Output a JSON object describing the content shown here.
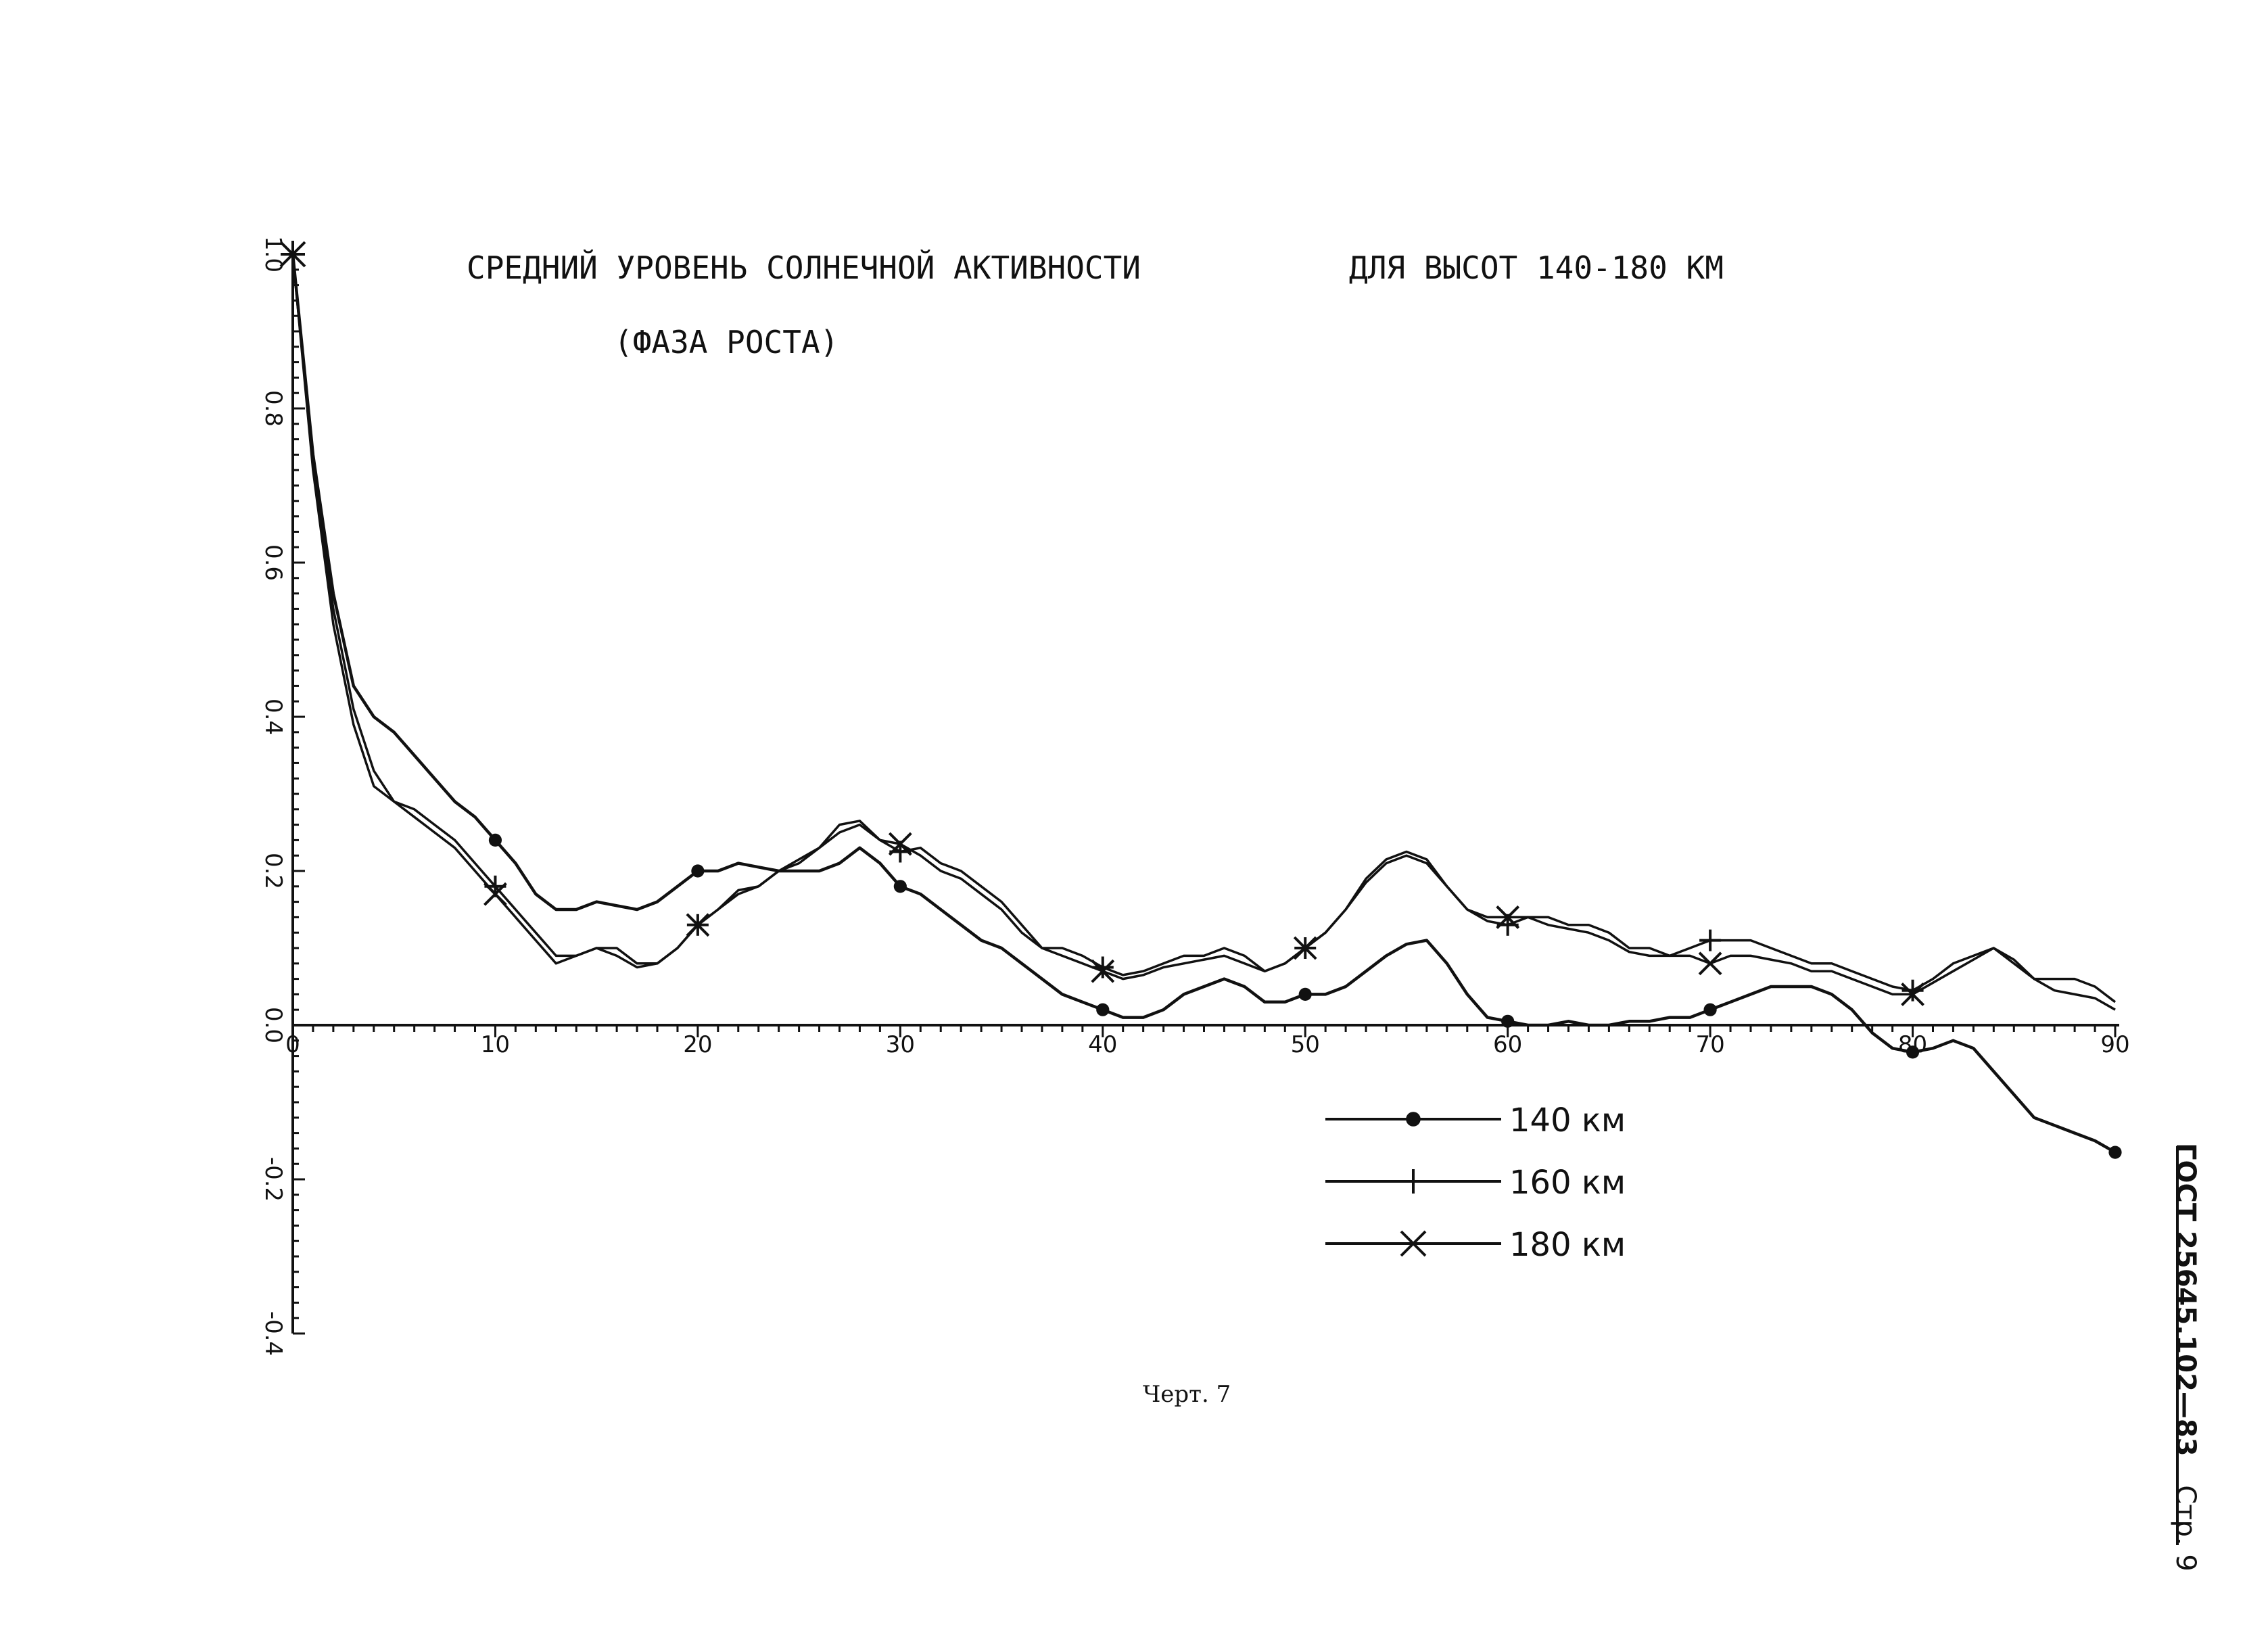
{
  "title": {
    "line1": "СРЕДНИЙ УРОВЕНЬ СОЛНЕЧНОЙ АКТИВНОСТИ",
    "line1b": "ДЛЯ ВЫСОТ 140-180 КМ",
    "line2": "(ФАЗА РОСТА)"
  },
  "caption": "Черт. 7",
  "side_note": {
    "standard": "ГОСТ 25645.102—83",
    "page": "Стр. 9"
  },
  "chart_data": {
    "type": "line",
    "title": "СРЕДНИЙ УРОВЕНЬ СОЛНЕЧНОЙ АКТИВНОСТИ ДЛЯ ВЫСОТ 140-180 КМ (ФАЗА РОСТА)",
    "xlabel": "",
    "ylabel": "",
    "xlim": [
      0,
      90
    ],
    "ylim": [
      -0.4,
      1.0
    ],
    "x_ticks": [
      {
        "value": 0,
        "label": "0"
      },
      {
        "value": 10,
        "label": "10"
      },
      {
        "value": 20,
        "label": "20"
      },
      {
        "value": 30,
        "label": "30"
      },
      {
        "value": 40,
        "label": "40"
      },
      {
        "value": 50,
        "label": "50"
      },
      {
        "value": 60,
        "label": "60"
      },
      {
        "value": 70,
        "label": "70"
      },
      {
        "value": 80,
        "label": "80"
      },
      {
        "value": 90,
        "label": "90"
      }
    ],
    "y_ticks": [
      {
        "value": 1.0,
        "label": "1.0"
      },
      {
        "value": 0.8,
        "label": "0.8"
      },
      {
        "value": 0.6,
        "label": "0.6"
      },
      {
        "value": 0.4,
        "label": "0.4"
      },
      {
        "value": 0.2,
        "label": "0.2"
      },
      {
        "value": 0.0,
        "label": "0.0"
      },
      {
        "value": -0.2,
        "label": "-0.2"
      },
      {
        "value": -0.4,
        "label": "-0.4"
      }
    ],
    "grid": false,
    "legend_position": "bottom-right",
    "series": [
      {
        "name": "140 км",
        "marker": "dot",
        "points": [
          [
            0,
            1.0
          ],
          [
            1,
            0.74
          ],
          [
            2,
            0.56
          ],
          [
            3,
            0.44
          ],
          [
            4,
            0.4
          ],
          [
            5,
            0.38
          ],
          [
            6,
            0.35
          ],
          [
            7,
            0.32
          ],
          [
            8,
            0.29
          ],
          [
            9,
            0.27
          ],
          [
            10,
            0.24
          ],
          [
            11,
            0.21
          ],
          [
            12,
            0.17
          ],
          [
            13,
            0.15
          ],
          [
            14,
            0.15
          ],
          [
            15,
            0.16
          ],
          [
            16,
            0.155
          ],
          [
            17,
            0.15
          ],
          [
            18,
            0.16
          ],
          [
            19,
            0.18
          ],
          [
            20,
            0.2
          ],
          [
            21,
            0.2
          ],
          [
            22,
            0.21
          ],
          [
            23,
            0.205
          ],
          [
            24,
            0.2
          ],
          [
            25,
            0.2
          ],
          [
            26,
            0.2
          ],
          [
            27,
            0.21
          ],
          [
            28,
            0.23
          ],
          [
            29,
            0.21
          ],
          [
            30,
            0.18
          ],
          [
            31,
            0.17
          ],
          [
            32,
            0.15
          ],
          [
            33,
            0.13
          ],
          [
            34,
            0.11
          ],
          [
            35,
            0.1
          ],
          [
            36,
            0.08
          ],
          [
            37,
            0.06
          ],
          [
            38,
            0.04
          ],
          [
            39,
            0.03
          ],
          [
            40,
            0.02
          ],
          [
            41,
            0.01
          ],
          [
            42,
            0.01
          ],
          [
            43,
            0.02
          ],
          [
            44,
            0.04
          ],
          [
            45,
            0.05
          ],
          [
            46,
            0.06
          ],
          [
            47,
            0.05
          ],
          [
            48,
            0.03
          ],
          [
            49,
            0.03
          ],
          [
            50,
            0.04
          ],
          [
            51,
            0.04
          ],
          [
            52,
            0.05
          ],
          [
            53,
            0.07
          ],
          [
            54,
            0.09
          ],
          [
            55,
            0.105
          ],
          [
            56,
            0.11
          ],
          [
            57,
            0.08
          ],
          [
            58,
            0.04
          ],
          [
            59,
            0.01
          ],
          [
            60,
            0.005
          ],
          [
            61,
            0.0
          ],
          [
            62,
            0.0
          ],
          [
            63,
            0.005
          ],
          [
            64,
            0.0
          ],
          [
            65,
            0.0
          ],
          [
            66,
            0.005
          ],
          [
            67,
            0.005
          ],
          [
            68,
            0.01
          ],
          [
            69,
            0.01
          ],
          [
            70,
            0.02
          ],
          [
            71,
            0.03
          ],
          [
            72,
            0.04
          ],
          [
            73,
            0.05
          ],
          [
            74,
            0.05
          ],
          [
            75,
            0.05
          ],
          [
            76,
            0.04
          ],
          [
            77,
            0.02
          ],
          [
            78,
            -0.01
          ],
          [
            79,
            -0.03
          ],
          [
            80,
            -0.035
          ],
          [
            81,
            -0.03
          ],
          [
            82,
            -0.02
          ],
          [
            83,
            -0.03
          ],
          [
            84,
            -0.06
          ],
          [
            85,
            -0.09
          ],
          [
            86,
            -0.12
          ],
          [
            87,
            -0.13
          ],
          [
            88,
            -0.14
          ],
          [
            89,
            -0.15
          ],
          [
            90,
            -0.165
          ]
        ],
        "marker_x": [
          10,
          20,
          30,
          40,
          50,
          60,
          70,
          80,
          90
        ]
      },
      {
        "name": "160 км",
        "marker": "plus",
        "points": [
          [
            0,
            1.0
          ],
          [
            1,
            0.73
          ],
          [
            2,
            0.54
          ],
          [
            3,
            0.41
          ],
          [
            4,
            0.33
          ],
          [
            5,
            0.29
          ],
          [
            6,
            0.28
          ],
          [
            7,
            0.26
          ],
          [
            8,
            0.24
          ],
          [
            9,
            0.21
          ],
          [
            10,
            0.18
          ],
          [
            11,
            0.15
          ],
          [
            12,
            0.12
          ],
          [
            13,
            0.09
          ],
          [
            14,
            0.09
          ],
          [
            15,
            0.1
          ],
          [
            16,
            0.1
          ],
          [
            17,
            0.08
          ],
          [
            18,
            0.08
          ],
          [
            19,
            0.1
          ],
          [
            20,
            0.13
          ],
          [
            21,
            0.15
          ],
          [
            22,
            0.17
          ],
          [
            23,
            0.18
          ],
          [
            24,
            0.2
          ],
          [
            25,
            0.21
          ],
          [
            26,
            0.23
          ],
          [
            27,
            0.26
          ],
          [
            28,
            0.265
          ],
          [
            29,
            0.24
          ],
          [
            30,
            0.225
          ],
          [
            31,
            0.23
          ],
          [
            32,
            0.21
          ],
          [
            33,
            0.2
          ],
          [
            34,
            0.18
          ],
          [
            35,
            0.16
          ],
          [
            36,
            0.13
          ],
          [
            37,
            0.1
          ],
          [
            38,
            0.1
          ],
          [
            39,
            0.09
          ],
          [
            40,
            0.075
          ],
          [
            41,
            0.065
          ],
          [
            42,
            0.07
          ],
          [
            43,
            0.08
          ],
          [
            44,
            0.09
          ],
          [
            45,
            0.09
          ],
          [
            46,
            0.1
          ],
          [
            47,
            0.09
          ],
          [
            48,
            0.07
          ],
          [
            49,
            0.08
          ],
          [
            50,
            0.1
          ],
          [
            51,
            0.12
          ],
          [
            52,
            0.15
          ],
          [
            53,
            0.19
          ],
          [
            54,
            0.215
          ],
          [
            55,
            0.225
          ],
          [
            56,
            0.215
          ],
          [
            57,
            0.18
          ],
          [
            58,
            0.15
          ],
          [
            59,
            0.135
          ],
          [
            60,
            0.13
          ],
          [
            61,
            0.14
          ],
          [
            62,
            0.14
          ],
          [
            63,
            0.13
          ],
          [
            64,
            0.13
          ],
          [
            65,
            0.12
          ],
          [
            66,
            0.1
          ],
          [
            67,
            0.1
          ],
          [
            68,
            0.09
          ],
          [
            69,
            0.1
          ],
          [
            70,
            0.11
          ],
          [
            71,
            0.11
          ],
          [
            72,
            0.11
          ],
          [
            73,
            0.1
          ],
          [
            74,
            0.09
          ],
          [
            75,
            0.08
          ],
          [
            76,
            0.08
          ],
          [
            77,
            0.07
          ],
          [
            78,
            0.06
          ],
          [
            79,
            0.05
          ],
          [
            80,
            0.045
          ],
          [
            81,
            0.06
          ],
          [
            82,
            0.08
          ],
          [
            83,
            0.09
          ],
          [
            84,
            0.1
          ],
          [
            85,
            0.085
          ],
          [
            86,
            0.06
          ],
          [
            87,
            0.06
          ],
          [
            88,
            0.06
          ],
          [
            89,
            0.05
          ],
          [
            90,
            0.03
          ]
        ],
        "marker_x": [
          10,
          20,
          30,
          40,
          50,
          60,
          70,
          80
        ]
      },
      {
        "name": "180 км",
        "marker": "cross",
        "points": [
          [
            0,
            1.0
          ],
          [
            1,
            0.72
          ],
          [
            2,
            0.52
          ],
          [
            3,
            0.39
          ],
          [
            4,
            0.31
          ],
          [
            5,
            0.29
          ],
          [
            6,
            0.27
          ],
          [
            7,
            0.25
          ],
          [
            8,
            0.23
          ],
          [
            9,
            0.2
          ],
          [
            10,
            0.17
          ],
          [
            11,
            0.14
          ],
          [
            12,
            0.11
          ],
          [
            13,
            0.08
          ],
          [
            14,
            0.09
          ],
          [
            15,
            0.1
          ],
          [
            16,
            0.09
          ],
          [
            17,
            0.075
          ],
          [
            18,
            0.08
          ],
          [
            19,
            0.1
          ],
          [
            20,
            0.13
          ],
          [
            21,
            0.15
          ],
          [
            22,
            0.175
          ],
          [
            23,
            0.18
          ],
          [
            24,
            0.2
          ],
          [
            25,
            0.215
          ],
          [
            26,
            0.23
          ],
          [
            27,
            0.25
          ],
          [
            28,
            0.26
          ],
          [
            29,
            0.24
          ],
          [
            30,
            0.235
          ],
          [
            31,
            0.22
          ],
          [
            32,
            0.2
          ],
          [
            33,
            0.19
          ],
          [
            34,
            0.17
          ],
          [
            35,
            0.15
          ],
          [
            36,
            0.12
          ],
          [
            37,
            0.1
          ],
          [
            38,
            0.09
          ],
          [
            39,
            0.08
          ],
          [
            40,
            0.07
          ],
          [
            41,
            0.06
          ],
          [
            42,
            0.065
          ],
          [
            43,
            0.075
          ],
          [
            44,
            0.08
          ],
          [
            45,
            0.085
          ],
          [
            46,
            0.09
          ],
          [
            47,
            0.08
          ],
          [
            48,
            0.07
          ],
          [
            49,
            0.08
          ],
          [
            50,
            0.1
          ],
          [
            51,
            0.12
          ],
          [
            52,
            0.15
          ],
          [
            53,
            0.185
          ],
          [
            54,
            0.21
          ],
          [
            55,
            0.22
          ],
          [
            56,
            0.21
          ],
          [
            57,
            0.18
          ],
          [
            58,
            0.15
          ],
          [
            59,
            0.14
          ],
          [
            60,
            0.14
          ],
          [
            61,
            0.14
          ],
          [
            62,
            0.13
          ],
          [
            63,
            0.125
          ],
          [
            64,
            0.12
          ],
          [
            65,
            0.11
          ],
          [
            66,
            0.095
          ],
          [
            67,
            0.09
          ],
          [
            68,
            0.09
          ],
          [
            69,
            0.09
          ],
          [
            70,
            0.08
          ],
          [
            71,
            0.09
          ],
          [
            72,
            0.09
          ],
          [
            73,
            0.085
          ],
          [
            74,
            0.08
          ],
          [
            75,
            0.07
          ],
          [
            76,
            0.07
          ],
          [
            77,
            0.06
          ],
          [
            78,
            0.05
          ],
          [
            79,
            0.04
          ],
          [
            80,
            0.04
          ],
          [
            81,
            0.055
          ],
          [
            82,
            0.07
          ],
          [
            83,
            0.085
          ],
          [
            84,
            0.1
          ],
          [
            85,
            0.08
          ],
          [
            86,
            0.06
          ],
          [
            87,
            0.045
          ],
          [
            88,
            0.04
          ],
          [
            89,
            0.035
          ],
          [
            90,
            0.02
          ]
        ],
        "marker_x": [
          10,
          20,
          30,
          40,
          50,
          60,
          70,
          80
        ]
      }
    ]
  }
}
